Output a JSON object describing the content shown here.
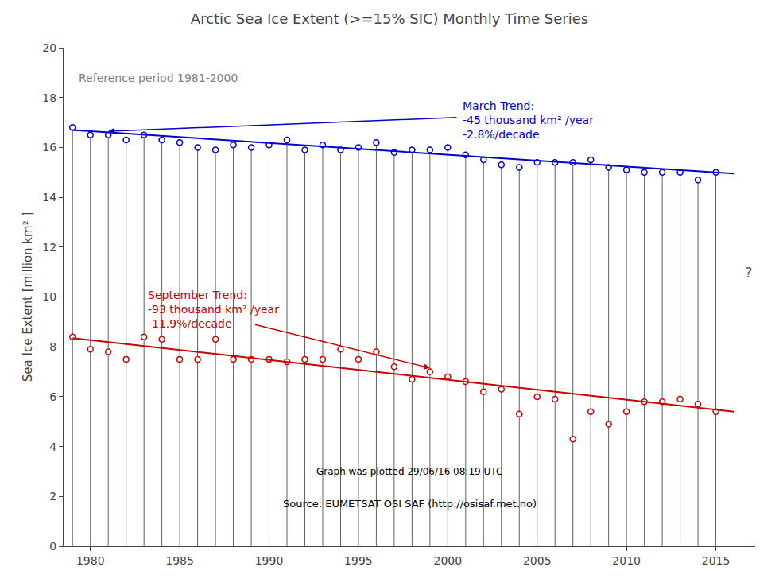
{
  "chart_data": {
    "type": "scatter",
    "title": "Arctic Sea Ice Extent (>=15% SIC) Monthly Time Series",
    "ylabel": "Sea Ice Extent [million km² ]",
    "x": [
      1979,
      1980,
      1981,
      1982,
      1983,
      1984,
      1985,
      1986,
      1987,
      1988,
      1989,
      1990,
      1991,
      1992,
      1993,
      1994,
      1995,
      1996,
      1997,
      1998,
      1999,
      2000,
      2001,
      2002,
      2003,
      2004,
      2005,
      2006,
      2007,
      2008,
      2009,
      2010,
      2011,
      2012,
      2013,
      2014,
      2015
    ],
    "series": [
      {
        "type": "stem",
        "color": "#606060",
        "values": [
          16.8,
          16.5,
          16.5,
          16.3,
          16.5,
          16.3,
          16.2,
          16.0,
          15.9,
          16.1,
          16.0,
          16.1,
          16.3,
          15.9,
          16.1,
          15.9,
          16.0,
          16.2,
          15.8,
          15.9,
          15.9,
          16.0,
          15.7,
          15.5,
          15.3,
          15.2,
          15.4,
          15.4,
          15.4,
          15.5,
          15.2,
          15.1,
          15.0,
          15.0,
          15.0,
          14.7,
          15.0
        ]
      },
      {
        "type": "scatter",
        "color": "#0000cc",
        "marker": "circle",
        "values": [
          16.8,
          16.5,
          16.5,
          16.3,
          16.5,
          16.3,
          16.2,
          16.0,
          15.9,
          16.1,
          16.0,
          16.1,
          16.3,
          15.9,
          16.1,
          15.9,
          16.0,
          16.2,
          15.8,
          15.9,
          15.9,
          16.0,
          15.7,
          15.5,
          15.3,
          15.2,
          15.4,
          15.4,
          15.4,
          15.5,
          15.2,
          15.1,
          15.0,
          15.0,
          15.0,
          14.7,
          15.0
        ]
      },
      {
        "type": "scatter",
        "color": "#cc0000",
        "marker": "circle",
        "values": [
          8.4,
          7.9,
          7.8,
          7.5,
          8.4,
          8.3,
          7.5,
          7.5,
          8.3,
          7.5,
          7.5,
          7.5,
          7.4,
          7.5,
          7.5,
          7.9,
          7.5,
          7.8,
          7.2,
          6.7,
          7.0,
          6.8,
          6.6,
          6.2,
          6.3,
          5.3,
          6.0,
          5.9,
          4.3,
          5.4,
          4.9,
          5.4,
          5.8,
          5.8,
          5.9,
          5.7,
          5.4
        ]
      },
      {
        "type": "line",
        "color": "#0000cc",
        "x": [
          1979,
          2016
        ],
        "values": [
          16.7,
          14.95
        ]
      },
      {
        "type": "line",
        "color": "#cc0000",
        "x": [
          1979,
          2016
        ],
        "values": [
          8.35,
          5.4
        ]
      }
    ],
    "xlim": [
      1978.5,
      2017.2
    ],
    "xticks": [
      1980,
      1985,
      1990,
      1995,
      2000,
      2005,
      2010,
      2015
    ],
    "ylim": [
      0,
      20
    ],
    "yticks": [
      0,
      2,
      4,
      6,
      8,
      10,
      12,
      14,
      16,
      18,
      20
    ],
    "grid": false,
    "annotations": [
      {
        "text": "Reference period 1981-2000",
        "color": "gray"
      },
      {
        "text": "March Trend:\n-45 thousand km² /year\n-2.8%/decade",
        "color": "#0000cc"
      },
      {
        "text": "September Trend:\n-93 thousand km² /year\n-11.9%/decade",
        "color": "#cc0000"
      },
      {
        "text": "?",
        "color": "#606060"
      },
      {
        "text": "Graph was plotted 29/06/16 08:19 UTC",
        "color": "black"
      },
      {
        "text": "Source: EUMETSAT OSI SAF (http://osisaf.met.no)",
        "color": "black"
      }
    ]
  }
}
